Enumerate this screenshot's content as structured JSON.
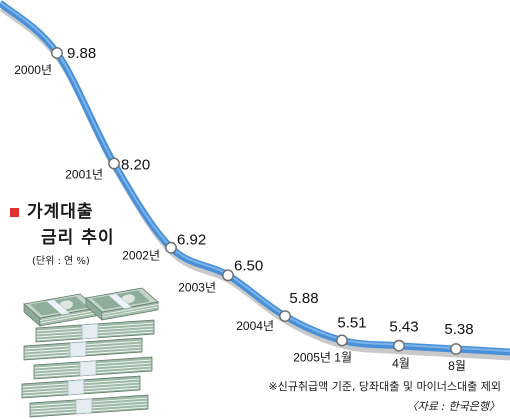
{
  "chart_data": {
    "type": "line",
    "title": [
      "가계대출",
      "금리 추이"
    ],
    "unit_label": "(단위 : 연 %)",
    "categories": [
      "2000년",
      "2001년",
      "2002년",
      "2003년",
      "2004년",
      "2005년 1월",
      "4월",
      "8월"
    ],
    "values": [
      9.88,
      8.2,
      6.92,
      6.5,
      5.88,
      5.51,
      5.43,
      5.38
    ],
    "value_labels": [
      "9.88",
      "8.20",
      "6.92",
      "6.50",
      "5.88",
      "5.51",
      "5.43",
      "5.38"
    ],
    "axes_visible": false,
    "grid": false,
    "footnote": "※신규취급액 기준, 당좌대출 및 마이너스대출 제외",
    "source": "〈자료 : 한국은행〉"
  },
  "colors": {
    "line": "#4a90d9",
    "line_highlight": "#86bdee",
    "line_shadow": "#c9c9c9",
    "marker_fill": "#ffffff",
    "marker_stroke": "#6b6b6b",
    "title_marker": "#e23131",
    "text": "#111111"
  },
  "icons": {
    "title_marker": "red-square-icon",
    "illustration": "money-stack-icon"
  }
}
